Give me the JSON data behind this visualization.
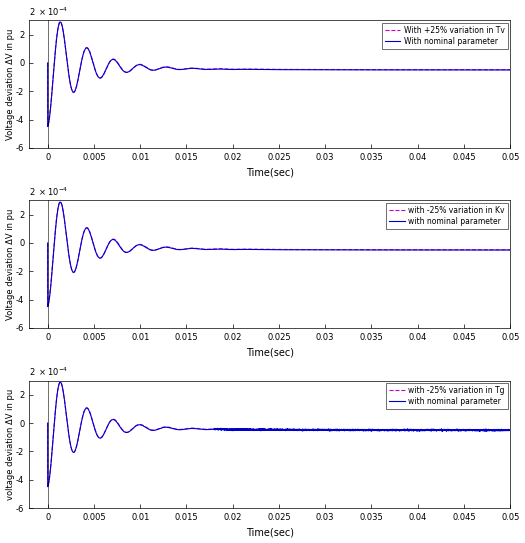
{
  "subplot1": {
    "ylabel": "Voltage deviation ΔV in pu",
    "xlabel": "Time(sec)",
    "ylim": [
      -0.0006,
      0.0003
    ],
    "yticks": [
      -0.0006,
      -0.0004,
      -0.0002,
      0,
      0.0002
    ],
    "xlim": [
      -0.002,
      0.05
    ],
    "xticks": [
      0,
      0.005,
      0.01,
      0.015,
      0.02,
      0.025,
      0.03,
      0.035,
      0.04,
      0.045,
      0.05
    ],
    "legend1": "With nominal parameter",
    "legend2": "With +25% variation in Tv",
    "color1": "#0000cc",
    "color2": "#cc00cc"
  },
  "subplot2": {
    "ylabel": "Voltage deviation ΔV in pu",
    "xlabel": "Time(sec)",
    "ylim": [
      -0.0006,
      0.0003
    ],
    "yticks": [
      -0.0006,
      -0.0004,
      -0.0002,
      0,
      0.0002
    ],
    "xlim": [
      -0.002,
      0.05
    ],
    "xticks": [
      0,
      0.005,
      0.01,
      0.015,
      0.02,
      0.025,
      0.03,
      0.035,
      0.04,
      0.045,
      0.05
    ],
    "legend1": "with nominal parameter",
    "legend2": "with -25% variation in Kv",
    "color1": "#0000cc",
    "color2": "#cc00cc"
  },
  "subplot3": {
    "ylabel": "voltage deviation ΔV in pu",
    "xlabel": "Time(sec)",
    "ylim": [
      -0.0006,
      0.0003
    ],
    "yticks": [
      -0.0006,
      -0.0004,
      -0.0002,
      0,
      0.0002
    ],
    "xlim": [
      -0.002,
      0.05
    ],
    "xticks": [
      0,
      0.005,
      0.01,
      0.015,
      0.02,
      0.025,
      0.03,
      0.035,
      0.04,
      0.045,
      0.05
    ],
    "legend1": "with nominal parameter",
    "legend2": "with -25% variation in Tg",
    "color1": "#0000cc",
    "color2": "#cc00cc"
  }
}
